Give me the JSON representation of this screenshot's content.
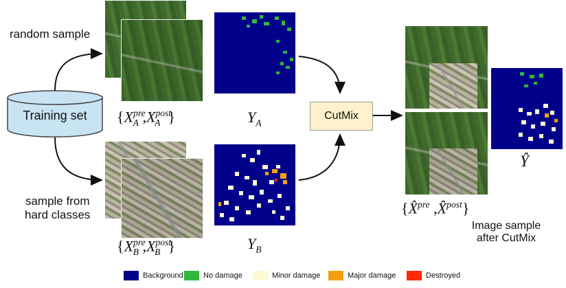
{
  "labels": {
    "random_sample": "random sample",
    "hard_sample_line1": "sample from",
    "hard_sample_line2": "hard classes",
    "training_set": "Training set",
    "cutmix": "CutMix",
    "result_line1": "Image sample",
    "result_line2": "after CutMix"
  },
  "math": {
    "XA": {
      "pre": "pre",
      "post": "post",
      "sub": "A",
      "var": "X"
    },
    "XB": {
      "pre": "pre",
      "post": "post",
      "sub": "B",
      "var": "X"
    },
    "YA": {
      "var": "Y",
      "sub": "A"
    },
    "YB": {
      "var": "Y",
      "sub": "B"
    },
    "Xhat": {
      "var": "X̂",
      "pre": "pre",
      "post": "post"
    },
    "Yhat": "Ŷ"
  },
  "legend": [
    {
      "label": "Background",
      "color": "#00008b"
    },
    {
      "label": "No damage",
      "color": "#2fb83a"
    },
    {
      "label": "Minor damage",
      "color": "#fdfad2"
    },
    {
      "label": "Major  damage",
      "color": "#f5a00f"
    },
    {
      "label": "Destroyed",
      "color": "#ff2a0a"
    }
  ]
}
